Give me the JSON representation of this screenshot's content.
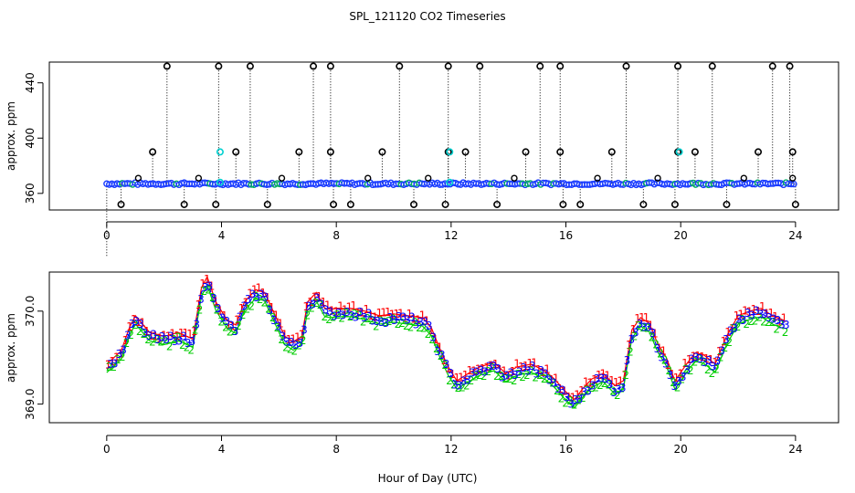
{
  "figure": {
    "title": "SPL_121120  CO2 Timeseries",
    "xlabel": "Hour of Day (UTC)"
  },
  "chart_data": [
    {
      "type": "scatter",
      "panel": "top",
      "ylabel": "approx. ppm",
      "xlim": [
        -2,
        25.5
      ],
      "ylim": [
        348,
        455
      ],
      "xticks": [
        0,
        4,
        8,
        12,
        16,
        20,
        24
      ],
      "xtick_labels": [
        "0",
        "4",
        "8",
        "12",
        "16",
        "20",
        "24"
      ],
      "yticks": [
        360,
        400,
        440
      ],
      "ytick_labels": [
        "360",
        "400",
        "440"
      ],
      "baseline_ppm": 367,
      "spikes_high": [
        2.1,
        3.9,
        5.0,
        7.2,
        7.8,
        10.2,
        11.9,
        13.0,
        15.1,
        15.8,
        18.1,
        19.9,
        21.1,
        23.2,
        23.8
      ],
      "spikes_high_value": 452,
      "spikes_mid": [
        1.6,
        4.5,
        6.7,
        7.8,
        9.6,
        11.9,
        12.5,
        14.6,
        15.8,
        17.6,
        19.9,
        20.5,
        22.7,
        23.9
      ],
      "spikes_mid_value": 390,
      "spikes_low": [
        0.5,
        2.7,
        3.8,
        5.6,
        7.9,
        8.5,
        10.7,
        11.8,
        13.6,
        15.9,
        16.5,
        18.7,
        19.8,
        21.6,
        24.0
      ],
      "spikes_low_value": 352,
      "bumps": [
        1.1,
        3.2,
        6.1,
        9.1,
        11.2,
        14.2,
        17.1,
        19.2,
        22.2,
        23.9
      ],
      "bumps_value": 371,
      "cyan_points": [
        [
          3.95,
          390
        ],
        [
          11.95,
          390
        ],
        [
          19.95,
          390
        ],
        [
          3.95,
          368
        ],
        [
          11.95,
          368
        ]
      ]
    },
    {
      "type": "line",
      "panel": "bottom",
      "ylabel": "approx. ppm",
      "xlim": [
        -2,
        25.5
      ],
      "ylim": [
        368.8,
        370.42
      ],
      "xticks": [
        0,
        4,
        8,
        12,
        16,
        20,
        24
      ],
      "xtick_labels": [
        "0",
        "4",
        "8",
        "12",
        "16",
        "20",
        "24"
      ],
      "yticks": [
        369.0,
        370.0
      ],
      "ytick_labels": [
        "369.0",
        "370.0"
      ],
      "series": [
        {
          "name": "1",
          "color": "#ff0000",
          "offset": 0.05
        },
        {
          "name": "2",
          "color": "#00cd00",
          "offset": -0.04
        },
        {
          "name": "3",
          "color": "#0000ff",
          "offset": 0.0
        }
      ],
      "x": [
        0.0,
        0.5,
        0.8,
        1.0,
        1.5,
        2.0,
        2.5,
        3.0,
        3.3,
        3.5,
        3.8,
        4.2,
        4.5,
        4.8,
        5.2,
        5.5,
        5.8,
        6.2,
        6.5,
        6.8,
        7.0,
        7.3,
        7.6,
        7.8,
        8.0,
        8.5,
        9.0,
        9.5,
        10.0,
        10.5,
        11.0,
        11.3,
        11.6,
        11.9,
        12.2,
        12.6,
        13.0,
        13.5,
        13.9,
        14.3,
        14.8,
        15.3,
        15.6,
        16.0,
        16.3,
        16.6,
        16.9,
        17.3,
        17.7,
        18.0,
        18.3,
        18.6,
        18.9,
        19.2,
        19.5,
        19.8,
        20.2,
        20.5,
        20.8,
        21.2,
        21.6,
        22.0,
        22.4,
        22.8,
        23.2,
        23.6
      ],
      "values": [
        369.38,
        369.52,
        369.78,
        369.9,
        369.72,
        369.68,
        369.72,
        369.65,
        370.2,
        370.32,
        370.05,
        369.85,
        369.8,
        370.05,
        370.18,
        370.15,
        369.95,
        369.68,
        369.62,
        369.68,
        370.05,
        370.15,
        369.98,
        369.97,
        369.98,
        369.98,
        369.95,
        369.9,
        369.92,
        369.9,
        369.88,
        369.78,
        369.55,
        369.35,
        369.2,
        369.28,
        369.35,
        369.4,
        369.28,
        369.35,
        369.38,
        369.3,
        369.22,
        369.08,
        369.0,
        369.12,
        369.22,
        369.28,
        369.15,
        369.2,
        369.75,
        369.88,
        369.82,
        369.6,
        369.45,
        369.2,
        369.38,
        369.5,
        369.48,
        369.38,
        369.68,
        369.9,
        369.95,
        369.98,
        369.9,
        369.85
      ]
    }
  ]
}
